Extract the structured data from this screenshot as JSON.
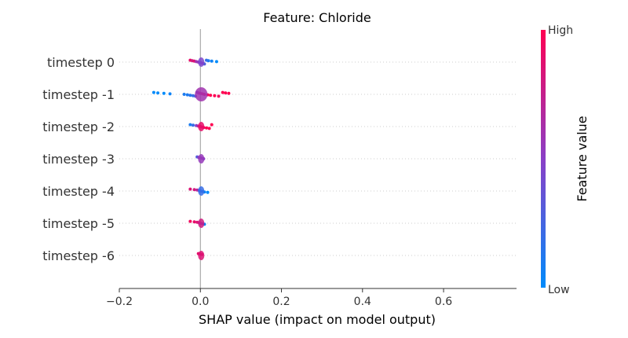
{
  "chart_data": {
    "type": "scatter",
    "title": "Feature: Chloride",
    "xlabel": "SHAP value (impact on model output)",
    "xlim": [
      -0.2,
      0.78
    ],
    "x_ticks": [
      "−0.2",
      "0.0",
      "0.2",
      "0.4",
      "0.6"
    ],
    "x_tick_values": [
      -0.2,
      0.0,
      0.2,
      0.4,
      0.6
    ],
    "colorbar": {
      "label": "Feature value",
      "high": "High",
      "low": "Low",
      "low_color": "#008bfb",
      "high_color": "#ff0051"
    },
    "rows": [
      {
        "label": "timestep 0",
        "points": [
          [
            -0.025,
            0.9
          ],
          [
            -0.02,
            0.8
          ],
          [
            -0.015,
            0.85
          ],
          [
            -0.01,
            0.6
          ],
          [
            -0.005,
            0.55
          ],
          [
            0.0,
            0.5
          ],
          [
            0.003,
            0.45
          ],
          [
            0.006,
            0.6
          ],
          [
            0.01,
            0.3
          ],
          [
            0.015,
            0.2
          ],
          [
            0.02,
            0.1
          ],
          [
            0.028,
            0.05
          ],
          [
            0.04,
            0.0
          ]
        ]
      },
      {
        "label": "timestep -1",
        "points": [
          [
            -0.115,
            0.0
          ],
          [
            -0.105,
            0.0
          ],
          [
            -0.09,
            0.0
          ],
          [
            -0.075,
            0.05
          ],
          [
            -0.04,
            0.1
          ],
          [
            -0.032,
            0.1
          ],
          [
            -0.025,
            0.15
          ],
          [
            -0.018,
            0.2
          ],
          [
            -0.012,
            0.3
          ],
          [
            -0.008,
            0.4
          ],
          [
            -0.004,
            0.6
          ],
          [
            0.0,
            0.8
          ],
          [
            0.005,
            0.9
          ],
          [
            0.01,
            0.95
          ],
          [
            0.018,
            0.95
          ],
          [
            0.025,
            1.0
          ],
          [
            0.035,
            1.0
          ],
          [
            0.045,
            0.95
          ],
          [
            0.055,
            1.0
          ],
          [
            0.062,
            1.0
          ],
          [
            0.07,
            1.0
          ]
        ]
      },
      {
        "label": "timestep -2",
        "points": [
          [
            -0.025,
            0.1
          ],
          [
            -0.018,
            0.2
          ],
          [
            -0.01,
            0.5
          ],
          [
            -0.005,
            0.7
          ],
          [
            0.0,
            0.8
          ],
          [
            0.004,
            0.9
          ],
          [
            0.008,
            0.95
          ],
          [
            0.015,
            1.0
          ],
          [
            0.022,
            1.0
          ],
          [
            0.028,
            1.0
          ]
        ]
      },
      {
        "label": "timestep -3",
        "points": [
          [
            -0.008,
            0.3
          ],
          [
            -0.004,
            0.5
          ],
          [
            0.0,
            0.55
          ],
          [
            0.004,
            0.6
          ],
          [
            0.008,
            0.5
          ]
        ]
      },
      {
        "label": "timestep -4",
        "points": [
          [
            -0.025,
            0.85
          ],
          [
            -0.015,
            0.8
          ],
          [
            -0.008,
            0.7
          ],
          [
            -0.003,
            0.4
          ],
          [
            0.0,
            0.2
          ],
          [
            0.005,
            0.1
          ],
          [
            0.01,
            0.05
          ],
          [
            0.018,
            0.0
          ]
        ]
      },
      {
        "label": "timestep -5",
        "points": [
          [
            -0.025,
            0.95
          ],
          [
            -0.015,
            0.9
          ],
          [
            -0.008,
            0.85
          ],
          [
            -0.003,
            0.8
          ],
          [
            0.0,
            0.5
          ],
          [
            0.005,
            0.2
          ],
          [
            0.01,
            0.05
          ]
        ]
      },
      {
        "label": "timestep -6",
        "points": [
          [
            -0.005,
            0.9
          ],
          [
            0.0,
            0.85
          ],
          [
            0.004,
            0.9
          ]
        ]
      }
    ]
  }
}
